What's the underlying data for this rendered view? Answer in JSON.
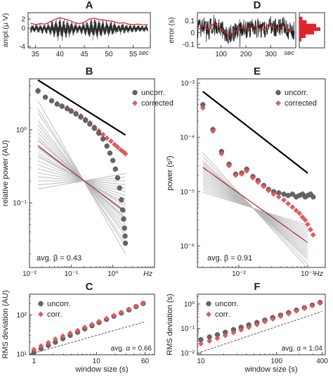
{
  "chart_data": [
    {
      "panel": "A",
      "type": "line",
      "ylabel": "ampl.(μ V)",
      "xunit": "sec",
      "xlim": [
        33.5,
        58.5
      ],
      "ylim": [
        -4.3,
        3.4
      ],
      "xticks": [
        35,
        40,
        45,
        50,
        55
      ],
      "yticks": [
        -4,
        0,
        2
      ],
      "series": [
        {
          "role": "raw signal",
          "color": "#2a2a2a",
          "note": "alpha-band oscillation, envelope bursts at ~39-42 s and ~46-50 s, shaded band"
        },
        {
          "role": "amplitude envelope",
          "color": "#e0232b",
          "x": [
            34,
            35,
            36,
            37,
            38,
            39,
            40,
            41,
            42,
            43,
            44,
            45,
            46,
            47,
            48,
            49,
            50,
            51,
            52,
            53,
            54,
            55,
            56,
            57,
            58
          ],
          "y": [
            1.1,
            0.8,
            1.0,
            0.9,
            1.4,
            1.9,
            2.3,
            2.0,
            1.7,
            1.2,
            1.0,
            1.3,
            2.0,
            2.2,
            1.9,
            1.8,
            1.6,
            1.5,
            1.1,
            1.2,
            0.9,
            0.8,
            0.9,
            0.7,
            0.8
          ]
        }
      ]
    },
    {
      "panel": "B",
      "type": "scatter",
      "xlabel": "Hz",
      "ylabel": "relative power (AU)",
      "xscale": "log",
      "yscale": "log",
      "xlim": [
        0.01,
        10
      ],
      "ylim": [
        0.013,
        5
      ],
      "xticks": [
        0.01,
        0.1,
        1
      ],
      "xticklabels": [
        "10⁻²",
        "10⁻¹",
        "10⁰"
      ],
      "yticks": [
        0.1,
        1
      ],
      "yticklabels": [
        "10⁻¹",
        "10⁰"
      ],
      "legend": [
        "uncorr.",
        "corrected"
      ],
      "annotation": "avg. β = 0.43",
      "series": [
        {
          "name": "uncorr.",
          "marker": "circle",
          "color": "#666666",
          "x": [
            0.016,
            0.024,
            0.034,
            0.046,
            0.06,
            0.08,
            0.1,
            0.13,
            0.17,
            0.22,
            0.28,
            0.36,
            0.46,
            0.58,
            0.72,
            0.85,
            1.0,
            1.15,
            1.3,
            1.45,
            1.6,
            1.72,
            1.82,
            1.9,
            1.96,
            2.0
          ],
          "y": [
            3.4,
            2.8,
            2.5,
            2.25,
            2.1,
            1.95,
            1.8,
            1.65,
            1.5,
            1.35,
            1.2,
            1.05,
            0.9,
            0.75,
            0.6,
            0.48,
            0.38,
            0.29,
            0.22,
            0.16,
            0.11,
            0.08,
            0.06,
            0.045,
            0.035,
            0.028
          ]
        },
        {
          "name": "corrected",
          "marker": "diamond",
          "color": "#e8585d",
          "x": [
            0.016,
            0.024,
            0.034,
            0.046,
            0.06,
            0.08,
            0.1,
            0.13,
            0.17,
            0.22,
            0.28,
            0.36,
            0.46,
            0.58,
            0.72,
            0.9,
            1.1,
            1.3,
            1.55,
            1.8,
            2.0
          ],
          "y": [
            3.5,
            2.8,
            2.5,
            2.3,
            2.15,
            2.0,
            1.85,
            1.7,
            1.55,
            1.4,
            1.25,
            1.1,
            0.97,
            0.86,
            0.77,
            0.7,
            0.63,
            0.58,
            0.53,
            0.5,
            0.47
          ]
        },
        {
          "name": "1/f^β reference",
          "style": "solid black",
          "x": [
            0.016,
            2.0
          ],
          "y": [
            4.8,
            0.85
          ]
        },
        {
          "name": "average fit",
          "style": "solid dark red",
          "x": [
            0.016,
            2.0
          ],
          "y": [
            0.6,
            0.075
          ]
        },
        {
          "name": "individual fits",
          "style": "solid light grey",
          "pivot": {
            "x": 0.2,
            "y": 0.2
          },
          "x": [
            0.016,
            2.0
          ],
          "slopes": [
            -1.0,
            -0.9,
            -0.85,
            -0.75,
            -0.7,
            -0.65,
            -0.6,
            -0.55,
            -0.52,
            -0.5,
            -0.45,
            -0.42,
            -0.4,
            -0.35,
            -0.32,
            -0.3,
            -0.25,
            -0.2,
            -0.15,
            -0.1,
            -0.05,
            0.0,
            0.05,
            0.1
          ]
        }
      ]
    },
    {
      "panel": "C",
      "type": "scatter",
      "xlabel": "window size (s)",
      "ylabel": "RMS deviation (AU)",
      "xscale": "log",
      "yscale": "log",
      "xlim": [
        0.85,
        85
      ],
      "ylim": [
        9.5,
        340
      ],
      "xticks": [
        1,
        10,
        60
      ],
      "xticklabels": [
        "1",
        "10",
        "60"
      ],
      "yticks": [
        10,
        100
      ],
      "yticklabels": [
        "10¹",
        "10²"
      ],
      "legend": [
        "uncorr.",
        "corr."
      ],
      "annotation": "avg. α = 0.66",
      "series": [
        {
          "name": "uncorr.",
          "marker": "circle",
          "color": "#666666",
          "x": [
            1,
            1.3,
            1.7,
            2.2,
            2.9,
            3.8,
            5,
            6.5,
            8.5,
            11,
            14.5,
            19,
            25,
            33,
            43,
            56
          ],
          "y": [
            11,
            13.5,
            16.5,
            20,
            24.5,
            30,
            36,
            44,
            53,
            64,
            77,
            93,
            112,
            135,
            163,
            197
          ]
        },
        {
          "name": "corr.",
          "marker": "diamond",
          "color": "#e8585d",
          "x": [
            1,
            1.3,
            1.7,
            2.2,
            2.9,
            3.8,
            5,
            6.5,
            8.5,
            11,
            14.5,
            19,
            25,
            33,
            43,
            56
          ],
          "y": [
            13,
            16,
            19.5,
            24,
            28.5,
            34,
            40,
            48,
            57,
            68,
            81,
            97,
            116,
            139,
            166,
            198
          ]
        },
        {
          "name": "reference",
          "style": "dashed",
          "color": "#7a2a2a",
          "x": [
            1,
            60
          ],
          "y": [
            10.5,
            67
          ]
        }
      ]
    },
    {
      "panel": "D",
      "type": "line",
      "ylabel": "error (s)",
      "xunit": "sec",
      "xlim": [
        5,
        400
      ],
      "ylim": [
        -0.13,
        0.17
      ],
      "xticks": [
        100,
        200,
        300
      ],
      "yticks": [
        -0.1,
        0,
        0.1
      ],
      "series": [
        {
          "role": "error signal",
          "color": "#1a1a1a",
          "note": "dense fluctuating trace of tapping error around 0"
        },
        {
          "role": "smoothed",
          "color": "#e0232b",
          "x": [
            10,
            30,
            50,
            70,
            90,
            110,
            130,
            150,
            170,
            190,
            210,
            230,
            250,
            270,
            290,
            310,
            330,
            350,
            370,
            390
          ],
          "y": [
            0.03,
            0.06,
            0.02,
            0.08,
            0.05,
            0.01,
            -0.02,
            0.0,
            0.03,
            0.05,
            0.02,
            0.06,
            0.04,
            0.02,
            0.07,
            0.05,
            0.03,
            0.06,
            0.01,
            0.02
          ]
        }
      ],
      "inset": {
        "type": "histogram",
        "color": "#e0232b",
        "bins_y": [
          0.12,
          0.09,
          0.06,
          0.03,
          0.0,
          -0.03,
          -0.06
        ],
        "counts": [
          0.15,
          0.35,
          0.8,
          1.0,
          0.7,
          0.3,
          0.1
        ]
      }
    },
    {
      "panel": "E",
      "type": "scatter",
      "xlabel": "Hz",
      "ylabel": "power (s²)",
      "xscale": "log",
      "yscale": "log",
      "xlim": [
        0.0025,
        0.18
      ],
      "ylim": [
        4e-07,
        0.0012
      ],
      "xticks": [
        0.01,
        0.1
      ],
      "xticklabels": [
        "10⁻²",
        "10⁻¹"
      ],
      "yticks": [
        1e-06,
        1e-05,
        0.0001,
        0.001
      ],
      "yticklabels": [
        "10⁻⁶",
        "10⁻⁵",
        "10⁻⁴",
        "10⁻³"
      ],
      "legend": [
        "uncorr.",
        "corrected"
      ],
      "annotation": "avg. β = 0.91",
      "series": [
        {
          "name": "uncorr.",
          "marker": "circle",
          "color": "#666666",
          "x": [
            0.003,
            0.0042,
            0.0056,
            0.0072,
            0.009,
            0.011,
            0.013,
            0.016,
            0.019,
            0.023,
            0.027,
            0.032,
            0.038,
            0.045,
            0.052,
            0.06,
            0.068,
            0.076,
            0.084,
            0.092,
            0.1,
            0.11,
            0.12
          ],
          "y": [
            0.0004,
            0.00014,
            5.5e-05,
            3.2e-05,
            2.1e-05,
            2.2e-05,
            2.6e-05,
            1.9e-05,
            1.6e-05,
            1.3e-05,
            1.1e-05,
            1e-05,
            9.5e-06,
            9e-06,
            8.5e-06,
            9e-06,
            8e-06,
            8.5e-06,
            9e-06,
            8e-06,
            8.5e-06,
            9e-06,
            8e-06
          ]
        },
        {
          "name": "corrected",
          "marker": "diamond",
          "color": "#e8585d",
          "x": [
            0.003,
            0.0042,
            0.0056,
            0.0072,
            0.009,
            0.011,
            0.013,
            0.016,
            0.019,
            0.023,
            0.027,
            0.032,
            0.038,
            0.045,
            0.052,
            0.06,
            0.068,
            0.076,
            0.084,
            0.092,
            0.1,
            0.11,
            0.12
          ],
          "y": [
            0.00035,
            0.00013,
            5e-05,
            3e-05,
            2e-05,
            2.1e-05,
            2.4e-05,
            1.8e-05,
            1.5e-05,
            1.25e-05,
            1.05e-05,
            9e-06,
            8e-06,
            7e-06,
            6e-06,
            5.2e-06,
            4.5e-06,
            4e-06,
            3.4e-06,
            3e-06,
            2.5e-06,
            2e-06,
            1.6e-06
          ]
        },
        {
          "name": "reference",
          "style": "solid black",
          "x": [
            0.003,
            0.1
          ],
          "y": [
            0.0007,
            2.2e-05
          ]
        },
        {
          "name": "average fit",
          "style": "solid dark red",
          "x": [
            0.003,
            0.1
          ],
          "y": [
            2.8e-05,
            1.15e-06
          ]
        },
        {
          "name": "individual fits",
          "style": "solid light grey",
          "pivot": {
            "x": 0.016,
            "y": 5e-06
          },
          "x": [
            0.003,
            0.1
          ],
          "slopes": [
            -1.4,
            -1.3,
            -1.2,
            -1.15,
            -1.1,
            -1.05,
            -1.0,
            -0.95,
            -0.9,
            -0.85,
            -0.8,
            -0.75,
            -0.7,
            -0.65,
            -0.6,
            -0.55,
            -0.5,
            -0.45,
            -0.4
          ]
        }
      ]
    },
    {
      "panel": "F",
      "type": "scatter",
      "xlabel": "window size (s)",
      "ylabel": "RMS deviation (s)",
      "xscale": "log",
      "yscale": "log",
      "xlim": [
        9,
        440
      ],
      "ylim": [
        0.0085,
        2.5
      ],
      "xticks": [
        10,
        100,
        400
      ],
      "xticklabels": [
        "10",
        "100",
        "400"
      ],
      "yticks": [
        0.01,
        0.1,
        1
      ],
      "yticklabels": [
        "10⁻²",
        "10⁻¹",
        "10⁰"
      ],
      "legend": [
        "uncorr.",
        "corr."
      ],
      "annotation": "avg. α = 1.04",
      "series": [
        {
          "name": "uncorr.",
          "marker": "circle",
          "color": "#666666",
          "x": [
            10,
            13,
            16.5,
            21,
            27,
            34,
            43,
            55,
            70,
            89,
            113,
            144,
            183,
            233,
            296,
            376
          ],
          "y": [
            0.035,
            0.045,
            0.056,
            0.07,
            0.09,
            0.112,
            0.14,
            0.175,
            0.22,
            0.28,
            0.35,
            0.44,
            0.56,
            0.7,
            0.9,
            1.15
          ]
        },
        {
          "name": "corr.",
          "marker": "diamond",
          "color": "#e8585d",
          "x": [
            10,
            13,
            16.5,
            21,
            27,
            34,
            43,
            55,
            70,
            89,
            113,
            144,
            183,
            233,
            296,
            376
          ],
          "y": [
            0.024,
            0.031,
            0.04,
            0.052,
            0.068,
            0.088,
            0.112,
            0.145,
            0.19,
            0.245,
            0.315,
            0.4,
            0.52,
            0.67,
            0.86,
            1.1
          ]
        },
        {
          "name": "reference",
          "style": "dashed",
          "color": "#7a2a2a",
          "x": [
            10,
            400
          ],
          "y": [
            0.011,
            0.5
          ]
        }
      ]
    }
  ]
}
